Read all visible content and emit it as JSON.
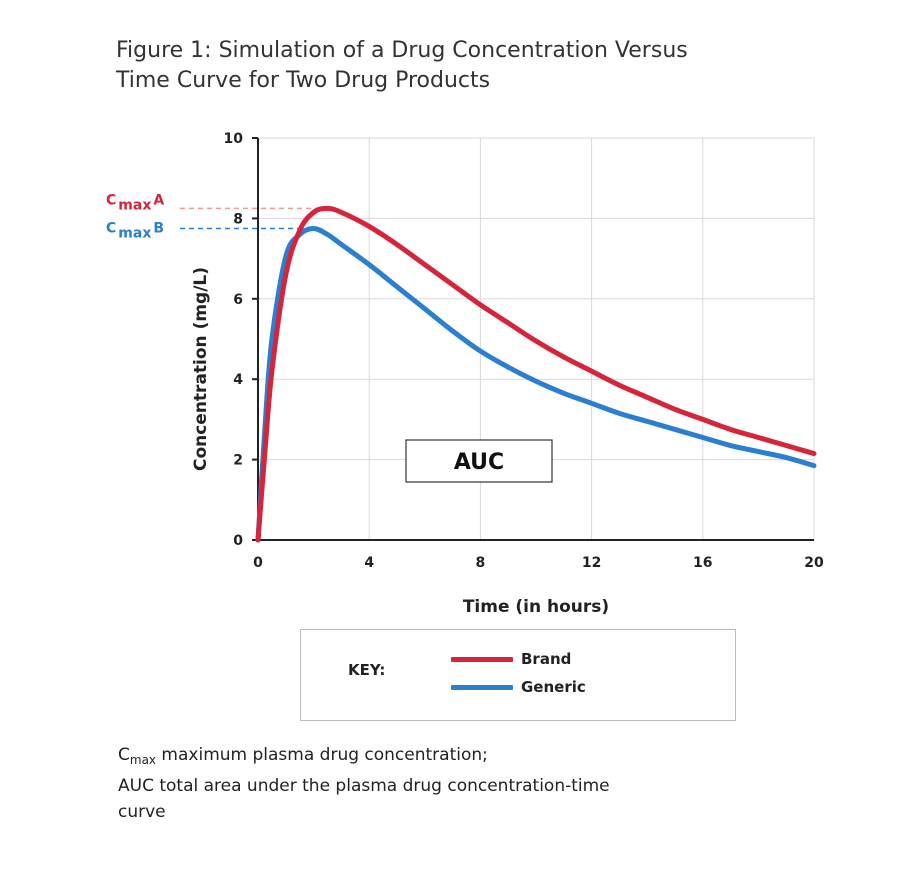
{
  "figure": {
    "title_line1": "Figure 1: Simulation of a Drug Concentration Versus",
    "title_line2": "Time Curve for Two Drug Products"
  },
  "colors": {
    "brand": "#d6253a",
    "generic": "#2b7fd1",
    "grid": "#d9d9d9"
  },
  "chart_data": {
    "type": "line",
    "xlabel": "Time (in hours)",
    "ylabel": "Concentration (mg/L)",
    "xlim": [
      0,
      20
    ],
    "ylim": [
      0,
      10
    ],
    "xticks": [
      0,
      4,
      8,
      12,
      16,
      20
    ],
    "yticks": [
      0,
      2,
      4,
      6,
      8,
      10
    ],
    "grid": true,
    "series": [
      {
        "name": "Brand",
        "x": [
          0,
          0.25,
          0.5,
          1,
          1.5,
          2,
          2.5,
          3,
          4,
          5,
          6,
          7,
          8,
          9,
          10,
          11,
          12,
          13,
          14,
          15,
          16,
          17,
          18,
          19,
          20
        ],
        "y": [
          0,
          2.2,
          4.2,
          6.6,
          7.7,
          8.15,
          8.25,
          8.15,
          7.8,
          7.35,
          6.85,
          6.35,
          5.85,
          5.4,
          4.95,
          4.55,
          4.2,
          3.85,
          3.55,
          3.25,
          3.0,
          2.75,
          2.55,
          2.35,
          2.15
        ]
      },
      {
        "name": "Generic",
        "x": [
          0,
          0.25,
          0.5,
          1,
          1.5,
          2,
          2.5,
          3,
          4,
          5,
          6,
          7,
          8,
          9,
          10,
          11,
          12,
          13,
          14,
          15,
          16,
          17,
          18,
          19,
          20
        ],
        "y": [
          0,
          2.8,
          5.0,
          7.05,
          7.6,
          7.75,
          7.6,
          7.35,
          6.85,
          6.3,
          5.75,
          5.2,
          4.7,
          4.3,
          3.95,
          3.65,
          3.4,
          3.15,
          2.95,
          2.75,
          2.55,
          2.35,
          2.2,
          2.05,
          1.85
        ]
      }
    ],
    "annotations": {
      "cmax_a_prefix": "C",
      "cmax_a_sub": "max",
      "cmax_a_suffix": "A",
      "cmax_b_prefix": "C",
      "cmax_b_sub": "max",
      "cmax_b_suffix": "B",
      "auc": "AUC"
    }
  },
  "key": {
    "title": "KEY:",
    "items": [
      {
        "label": "Brand",
        "color": "#d6253a"
      },
      {
        "label": "Generic",
        "color": "#2b7fd1"
      }
    ]
  },
  "footnote": {
    "line1_prefix": "C",
    "line1_sub": "max",
    "line1_text": " maximum plasma drug concentration;",
    "line2": "AUC total area under the plasma drug concentration-time",
    "line3": "curve"
  }
}
